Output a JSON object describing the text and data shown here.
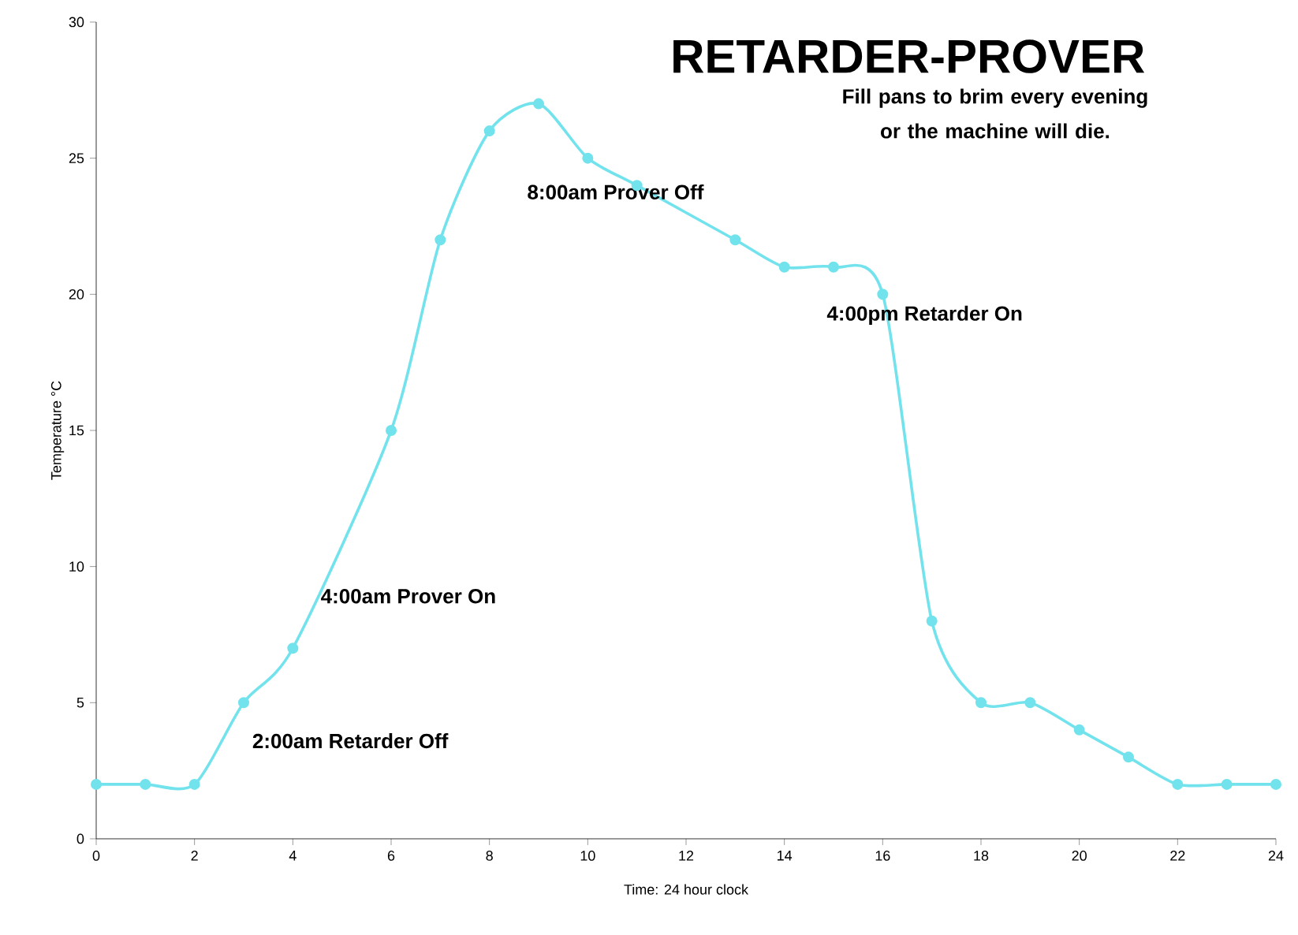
{
  "chart_data": {
    "type": "line",
    "title": "RETARDER-PROVER",
    "subtitle": "Fill pans to brim every evening or the machine will die.",
    "xlabel": "Time:  24 hour clock",
    "ylabel": "Temperature °C",
    "x": [
      0,
      1,
      2,
      3,
      4,
      6,
      7,
      8,
      9,
      10,
      11,
      13,
      14,
      15,
      16,
      17,
      18,
      19,
      20,
      21,
      22,
      23,
      24
    ],
    "series": [
      {
        "color": "#72e3ec",
        "values": [
          2,
          2,
          2,
          5,
          7,
          15,
          22,
          26,
          27,
          25,
          24,
          22,
          21,
          21,
          20,
          8,
          5,
          5,
          4,
          3,
          2,
          2,
          2
        ]
      }
    ],
    "annotations": [
      "2:00am Retarder Off",
      "4:00am Prover On",
      "8:00am Prover Off",
      "4:00pm Retarder On"
    ],
    "xlim": [
      0,
      24
    ],
    "xticks": [
      0,
      2,
      4,
      6,
      8,
      10,
      12,
      14,
      16,
      18,
      20,
      22,
      24
    ],
    "ylim": [
      0,
      30
    ],
    "yticks": [
      0,
      5,
      10,
      15,
      20,
      25,
      30
    ],
    "grid": false,
    "marker": "circle",
    "line_style": "solid"
  }
}
